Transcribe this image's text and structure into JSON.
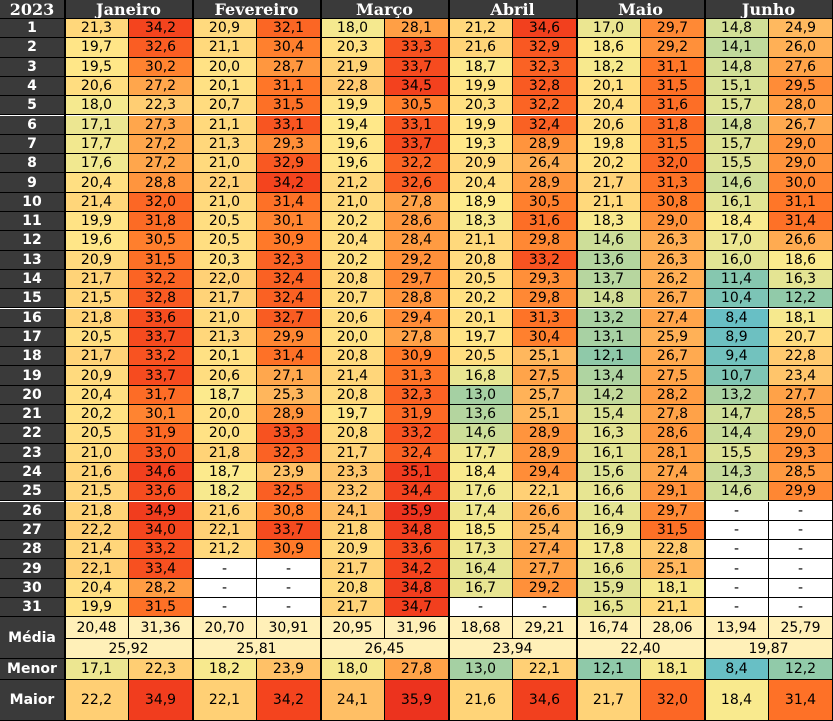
{
  "table": {
    "year_label": "2023",
    "months": [
      "Janeiro",
      "Fevereiro",
      "Março",
      "Abril",
      "Maio",
      "Junho"
    ],
    "days": [
      "1",
      "2",
      "3",
      "4",
      "5",
      "6",
      "7",
      "8",
      "9",
      "10",
      "11",
      "12",
      "13",
      "14",
      "15",
      "16",
      "17",
      "18",
      "19",
      "20",
      "21",
      "22",
      "23",
      "24",
      "25",
      "26",
      "27",
      "28",
      "29",
      "30",
      "31"
    ],
    "rows": [
      [
        "21,3",
        "34,2",
        "20,9",
        "32,1",
        "18,0",
        "28,1",
        "21,2",
        "34,6",
        "17,0",
        "29,7",
        "14,8",
        "24,9"
      ],
      [
        "19,7",
        "32,6",
        "21,1",
        "30,4",
        "20,3",
        "33,3",
        "21,6",
        "32,9",
        "18,6",
        "29,2",
        "14,1",
        "26,0"
      ],
      [
        "19,5",
        "30,2",
        "20,0",
        "28,7",
        "21,9",
        "33,7",
        "18,7",
        "32,3",
        "18,2",
        "31,1",
        "14,8",
        "27,6"
      ],
      [
        "20,6",
        "27,2",
        "20,1",
        "31,1",
        "22,8",
        "34,5",
        "19,9",
        "32,8",
        "20,1",
        "31,5",
        "15,1",
        "29,5"
      ],
      [
        "18,0",
        "22,3",
        "20,7",
        "31,5",
        "19,9",
        "30,5",
        "20,3",
        "32,2",
        "20,4",
        "31,6",
        "15,7",
        "28,0"
      ],
      [
        "17,1",
        "27,3",
        "21,1",
        "33,1",
        "19,4",
        "33,1",
        "19,9",
        "32,4",
        "20,6",
        "31,8",
        "14,8",
        "26,7"
      ],
      [
        "17,7",
        "27,2",
        "21,3",
        "29,3",
        "19,6",
        "33,7",
        "19,3",
        "28,9",
        "19,8",
        "31,5",
        "15,7",
        "29,0"
      ],
      [
        "17,6",
        "27,2",
        "21,0",
        "32,9",
        "19,6",
        "32,2",
        "20,9",
        "26,4",
        "20,2",
        "32,0",
        "15,5",
        "29,0"
      ],
      [
        "20,4",
        "28,8",
        "22,1",
        "34,2",
        "21,2",
        "32,6",
        "20,4",
        "28,9",
        "21,7",
        "31,3",
        "14,6",
        "30,0"
      ],
      [
        "21,4",
        "32,0",
        "21,0",
        "31,4",
        "21,0",
        "27,8",
        "18,9",
        "30,5",
        "21,1",
        "30,8",
        "16,1",
        "31,1"
      ],
      [
        "19,9",
        "31,8",
        "20,5",
        "30,1",
        "20,2",
        "28,6",
        "18,3",
        "31,6",
        "18,3",
        "29,0",
        "18,4",
        "31,4"
      ],
      [
        "19,6",
        "30,5",
        "20,5",
        "30,9",
        "20,4",
        "28,4",
        "21,1",
        "29,8",
        "14,6",
        "26,3",
        "17,0",
        "26,6"
      ],
      [
        "20,9",
        "31,5",
        "20,3",
        "32,3",
        "20,2",
        "29,2",
        "20,8",
        "33,2",
        "13,6",
        "26,3",
        "16,0",
        "18,6"
      ],
      [
        "21,7",
        "32,2",
        "22,0",
        "32,4",
        "20,8",
        "29,7",
        "20,5",
        "29,3",
        "13,7",
        "26,2",
        "11,4",
        "16,3"
      ],
      [
        "21,5",
        "32,8",
        "21,7",
        "32,4",
        "20,7",
        "28,8",
        "20,2",
        "29,8",
        "14,8",
        "26,7",
        "10,4",
        "12,2"
      ],
      [
        "21,8",
        "33,6",
        "21,0",
        "32,7",
        "20,6",
        "29,4",
        "20,1",
        "31,3",
        "13,2",
        "27,4",
        "8,4",
        "18,1"
      ],
      [
        "20,5",
        "33,7",
        "21,3",
        "29,9",
        "20,0",
        "27,8",
        "19,7",
        "30,4",
        "13,1",
        "25,9",
        "8,9",
        "20,7"
      ],
      [
        "21,7",
        "33,2",
        "20,1",
        "31,4",
        "20,8",
        "30,9",
        "20,5",
        "25,1",
        "12,1",
        "26,7",
        "9,4",
        "22,8"
      ],
      [
        "20,9",
        "33,7",
        "20,6",
        "27,1",
        "21,4",
        "31,3",
        "16,8",
        "27,5",
        "13,4",
        "27,5",
        "10,7",
        "23,4"
      ],
      [
        "20,4",
        "31,7",
        "18,7",
        "25,3",
        "20,8",
        "32,3",
        "13,0",
        "25,7",
        "14,2",
        "28,2",
        "13,2",
        "27,7"
      ],
      [
        "20,2",
        "30,1",
        "20,0",
        "28,9",
        "19,7",
        "31,9",
        "13,6",
        "25,1",
        "15,4",
        "27,8",
        "14,7",
        "28,5"
      ],
      [
        "20,5",
        "31,9",
        "20,0",
        "33,3",
        "20,8",
        "33,2",
        "14,6",
        "28,9",
        "16,3",
        "28,6",
        "14,4",
        "29,0"
      ],
      [
        "21,0",
        "33,0",
        "21,8",
        "32,3",
        "21,7",
        "32,4",
        "17,7",
        "28,9",
        "16,1",
        "28,1",
        "15,5",
        "29,3"
      ],
      [
        "21,6",
        "34,6",
        "18,7",
        "23,9",
        "23,3",
        "35,1",
        "18,4",
        "29,4",
        "15,6",
        "27,4",
        "14,3",
        "28,5"
      ],
      [
        "21,5",
        "33,6",
        "18,2",
        "32,5",
        "23,2",
        "34,4",
        "17,6",
        "22,1",
        "16,6",
        "29,1",
        "14,6",
        "29,9"
      ],
      [
        "21,8",
        "34,9",
        "21,6",
        "30,8",
        "24,1",
        "35,9",
        "17,4",
        "26,6",
        "16,4",
        "29,7",
        "-",
        "-"
      ],
      [
        "22,2",
        "34,0",
        "22,1",
        "33,7",
        "21,8",
        "34,8",
        "18,5",
        "25,4",
        "16,9",
        "31,5",
        "-",
        "-"
      ],
      [
        "21,4",
        "33,2",
        "21,2",
        "30,9",
        "20,9",
        "33,6",
        "17,3",
        "27,4",
        "17,8",
        "22,8",
        "-",
        "-"
      ],
      [
        "22,1",
        "33,4",
        "-",
        "-",
        "21,7",
        "34,2",
        "16,4",
        "27,7",
        "16,6",
        "25,1",
        "-",
        "-"
      ],
      [
        "20,4",
        "28,2",
        "-",
        "-",
        "20,8",
        "34,8",
        "16,7",
        "29,2",
        "15,9",
        "18,1",
        "-",
        "-"
      ],
      [
        "19,9",
        "31,5",
        "-",
        "-",
        "21,7",
        "34,7",
        "-",
        "-",
        "16,5",
        "21,1",
        "-",
        "-"
      ]
    ],
    "media_label": "Média",
    "media": [
      "20,48",
      "31,36",
      "20,70",
      "30,91",
      "20,95",
      "31,96",
      "18,68",
      "29,21",
      "16,74",
      "28,06",
      "13,94",
      "25,79"
    ],
    "media_month": [
      "25,92",
      "25,81",
      "26,45",
      "23,94",
      "22,40",
      "19,87"
    ],
    "menor_label": "Menor",
    "menor": [
      "17,1",
      "22,3",
      "18,2",
      "23,9",
      "18,0",
      "27,8",
      "13,0",
      "22,1",
      "12,1",
      "18,1",
      "8,4",
      "12,2"
    ],
    "maior_label": "Maior",
    "maior": [
      "22,2",
      "34,9",
      "22,1",
      "34,2",
      "24,1",
      "35,9",
      "21,6",
      "34,6",
      "21,7",
      "32,0",
      "18,4",
      "31,4"
    ]
  }
}
